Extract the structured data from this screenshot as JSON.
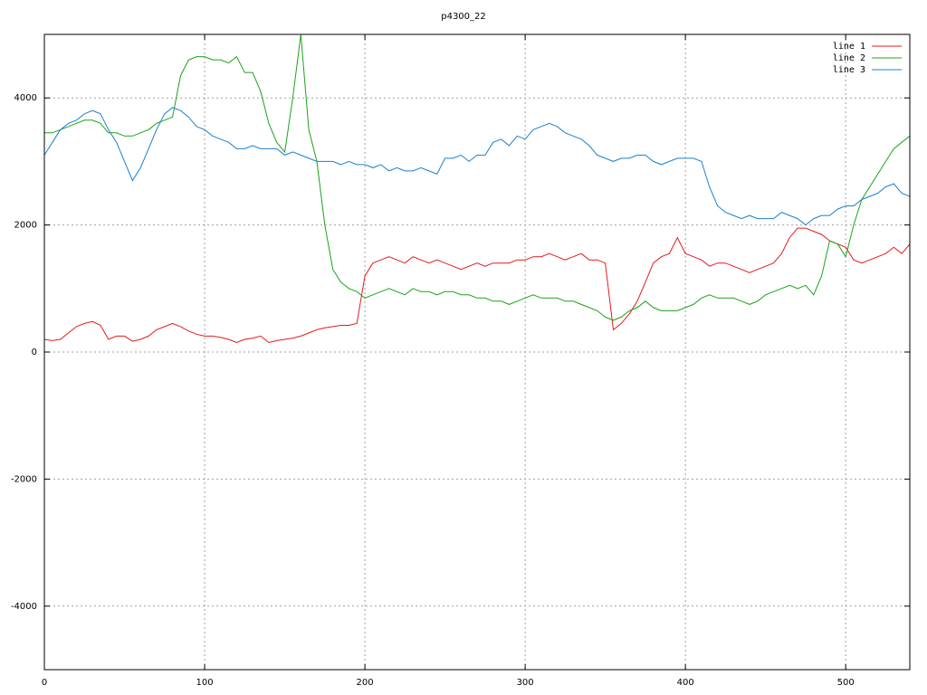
{
  "chart_data": {
    "type": "line",
    "title": "p4300_22",
    "x": [
      0,
      5,
      10,
      15,
      20,
      25,
      30,
      35,
      40,
      45,
      50,
      55,
      60,
      65,
      70,
      75,
      80,
      85,
      90,
      95,
      100,
      105,
      110,
      115,
      120,
      125,
      130,
      135,
      140,
      145,
      150,
      155,
      160,
      165,
      170,
      175,
      180,
      185,
      190,
      195,
      200,
      205,
      210,
      215,
      220,
      225,
      230,
      235,
      240,
      245,
      250,
      255,
      260,
      265,
      270,
      275,
      280,
      285,
      290,
      295,
      300,
      305,
      310,
      315,
      320,
      325,
      330,
      335,
      340,
      345,
      350,
      355,
      360,
      365,
      370,
      375,
      380,
      385,
      390,
      395,
      400,
      405,
      410,
      415,
      420,
      425,
      430,
      435,
      440,
      445,
      450,
      455,
      460,
      465,
      470,
      475,
      480,
      485,
      490,
      495,
      500,
      505,
      510,
      515,
      520,
      525,
      530,
      535,
      540
    ],
    "series": [
      {
        "name": "line 1",
        "color": "#e41a1c",
        "values": [
          200,
          180,
          200,
          300,
          400,
          450,
          480,
          420,
          200,
          250,
          250,
          170,
          200,
          250,
          350,
          400,
          450,
          400,
          330,
          280,
          250,
          250,
          230,
          200,
          150,
          200,
          220,
          250,
          150,
          180,
          200,
          220,
          250,
          300,
          350,
          380,
          400,
          420,
          420,
          450,
          1200,
          1400,
          1450,
          1500,
          1450,
          1400,
          1500,
          1450,
          1400,
          1450,
          1400,
          1350,
          1300,
          1350,
          1400,
          1350,
          1400,
          1400,
          1400,
          1450,
          1450,
          1500,
          1500,
          1550,
          1500,
          1450,
          1500,
          1550,
          1450,
          1450,
          1400,
          350,
          450,
          600,
          800,
          1100,
          1400,
          1500,
          1550,
          1800,
          1550,
          1500,
          1450,
          1350,
          1400,
          1400,
          1350,
          1300,
          1250,
          1300,
          1350,
          1400,
          1550,
          1800,
          1950,
          1950,
          1900,
          1850,
          1750,
          1700,
          1650,
          1450,
          1400,
          1450,
          1500,
          1550,
          1650,
          1550,
          1700
        ]
      },
      {
        "name": "line 2",
        "color": "#1aa31a",
        "values": [
          3450,
          3450,
          3500,
          3550,
          3600,
          3650,
          3650,
          3600,
          3450,
          3450,
          3400,
          3400,
          3450,
          3500,
          3600,
          3650,
          3700,
          4350,
          4600,
          4650,
          4650,
          4600,
          4600,
          4550,
          4650,
          4400,
          4400,
          4100,
          3600,
          3300,
          3150,
          4000,
          5000,
          3500,
          3000,
          2000,
          1300,
          1100,
          1000,
          950,
          850,
          900,
          950,
          1000,
          950,
          900,
          1000,
          950,
          950,
          900,
          950,
          950,
          900,
          900,
          850,
          850,
          800,
          800,
          750,
          800,
          850,
          900,
          850,
          850,
          850,
          800,
          800,
          750,
          700,
          650,
          550,
          500,
          550,
          650,
          700,
          800,
          700,
          650,
          650,
          650,
          700,
          750,
          850,
          900,
          850,
          850,
          850,
          800,
          750,
          800,
          900,
          950,
          1000,
          1050,
          1000,
          1050,
          900,
          1200,
          1750,
          1700,
          1500,
          2000,
          2400,
          2600,
          2800,
          3000,
          3200,
          3300,
          3400
        ]
      },
      {
        "name": "line 3",
        "color": "#1a80d0",
        "values": [
          3100,
          3300,
          3500,
          3600,
          3650,
          3750,
          3800,
          3750,
          3500,
          3300,
          3000,
          2700,
          2900,
          3200,
          3500,
          3750,
          3850,
          3800,
          3700,
          3550,
          3500,
          3400,
          3350,
          3300,
          3200,
          3200,
          3250,
          3200,
          3200,
          3200,
          3100,
          3150,
          3100,
          3050,
          3000,
          3000,
          3000,
          2950,
          3000,
          2950,
          2950,
          2900,
          2950,
          2850,
          2900,
          2850,
          2850,
          2900,
          2850,
          2800,
          3050,
          3050,
          3100,
          3000,
          3100,
          3100,
          3300,
          3350,
          3250,
          3400,
          3350,
          3500,
          3550,
          3600,
          3550,
          3450,
          3400,
          3350,
          3250,
          3100,
          3050,
          3000,
          3050,
          3050,
          3100,
          3100,
          3000,
          2950,
          3000,
          3050,
          3050,
          3050,
          3000,
          2600,
          2300,
          2200,
          2150,
          2100,
          2150,
          2100,
          2100,
          2100,
          2200,
          2150,
          2100,
          2000,
          2100,
          2150,
          2150,
          2250,
          2300,
          2300,
          2400,
          2450,
          2500,
          2600,
          2650,
          2500,
          2450
        ]
      }
    ],
    "xlim": [
      0,
      540
    ],
    "xticks": [
      0,
      100,
      200,
      300,
      400,
      500
    ],
    "ylim": [
      -5000,
      5000
    ],
    "yticks": [
      -4000,
      -2000,
      0,
      2000,
      4000
    ],
    "grid": true,
    "legend": "top-right"
  }
}
